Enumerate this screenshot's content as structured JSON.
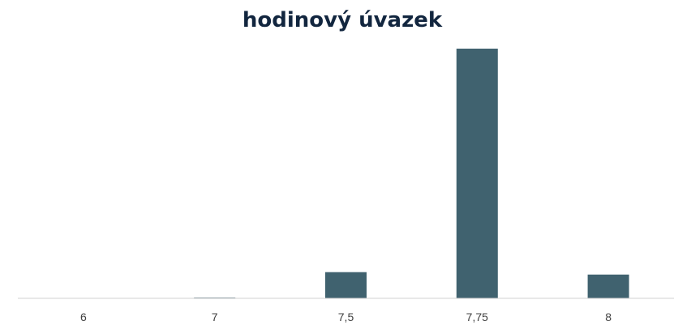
{
  "chart_data": {
    "type": "bar",
    "title": "hodinový úvazek",
    "xlabel": "",
    "ylabel": "",
    "categories": [
      "6",
      "7",
      "7,5",
      "7,75",
      "8"
    ],
    "values": [
      0,
      0.3,
      10.5,
      100,
      9.5
    ],
    "ylim": [
      0,
      100
    ],
    "grid": false,
    "legend": "none",
    "colors": {
      "bar": "#40626f",
      "title": "#12263f",
      "axis": "#d0d0d0"
    }
  }
}
